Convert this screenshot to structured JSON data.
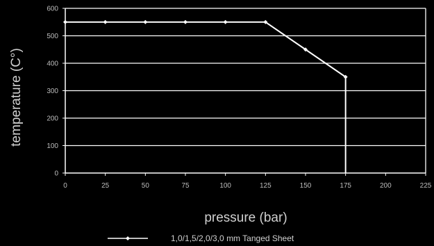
{
  "chart_data": {
    "type": "line",
    "x": [
      0,
      25,
      50,
      75,
      100,
      125,
      150,
      175
    ],
    "series": [
      {
        "name": "1,0/1,5/2,0/3,0 mm Tanged Sheet",
        "values": [
          550,
          550,
          550,
          550,
          550,
          550,
          450,
          350
        ]
      }
    ],
    "xlabel": "pressure (bar)",
    "ylabel": "temperature (C°)",
    "xlim": [
      0,
      225
    ],
    "ylim": [
      0,
      600
    ],
    "xticks": [
      "0",
      "25",
      "50",
      "75",
      "100",
      "125",
      "150",
      "175",
      "200",
      "225"
    ],
    "yticks": [
      "0",
      "100",
      "200",
      "300",
      "400",
      "500",
      "600"
    ],
    "grid": "horizontal",
    "legend_position": "bottom",
    "colors": {
      "background": "#000000",
      "line": "#ffffff",
      "grid": "#ffffff",
      "text": "#d0d0d0"
    }
  }
}
